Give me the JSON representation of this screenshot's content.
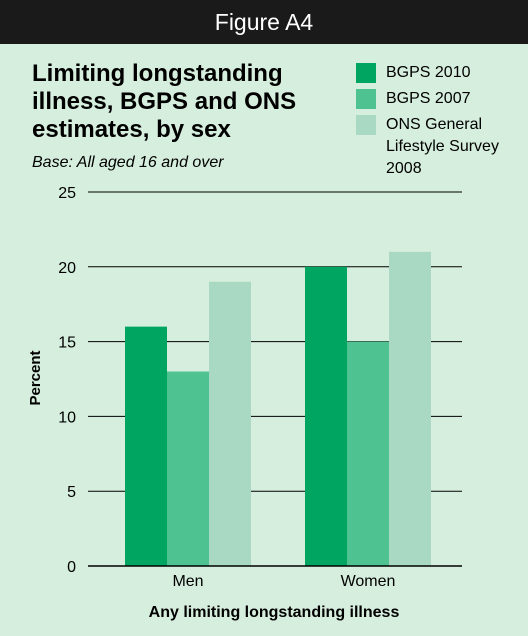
{
  "header": {
    "figure_label": "Figure A4"
  },
  "colors": {
    "background": "#d6eedd",
    "header_bg": "#1a1a1a",
    "series": [
      "#00a562",
      "#4fc292",
      "#aad9c3"
    ]
  },
  "chart_data": {
    "type": "bar",
    "title": "Limiting longstanding illness, BGPS and ONS estimates, by sex",
    "subtitle": "Base: All aged 16 and over",
    "xlabel": "Any limiting longstanding illness",
    "ylabel": "Percent",
    "categories": [
      "Men",
      "Women"
    ],
    "series": [
      {
        "name": "BGPS 2010",
        "values": [
          16,
          20
        ]
      },
      {
        "name": "BGPS 2007",
        "values": [
          13,
          15
        ]
      },
      {
        "name": "ONS General Lifestyle Survey 2008",
        "values": [
          19,
          21
        ]
      }
    ],
    "ylim": [
      0,
      25
    ],
    "yticks": [
      "0",
      "5",
      "10",
      "15",
      "20",
      "25"
    ],
    "grid": true,
    "legend_position": "top-right"
  }
}
